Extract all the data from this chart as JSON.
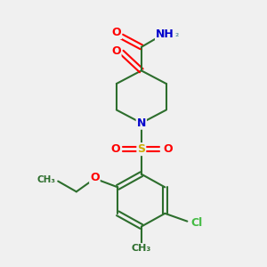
{
  "bg_color": "#f0f0f0",
  "bond_color": "#2d6e2d",
  "bond_width": 1.5,
  "atom_colors": {
    "O": "#ff0000",
    "N": "#0000cc",
    "S": "#ccaa00",
    "Cl": "#44bb44",
    "C": "#2d6e2d",
    "H": "#6699aa"
  },
  "font_size": 9,
  "fig_bg": "#f0f0f0",
  "xlim": [
    0,
    10
  ],
  "ylim": [
    0,
    10
  ]
}
